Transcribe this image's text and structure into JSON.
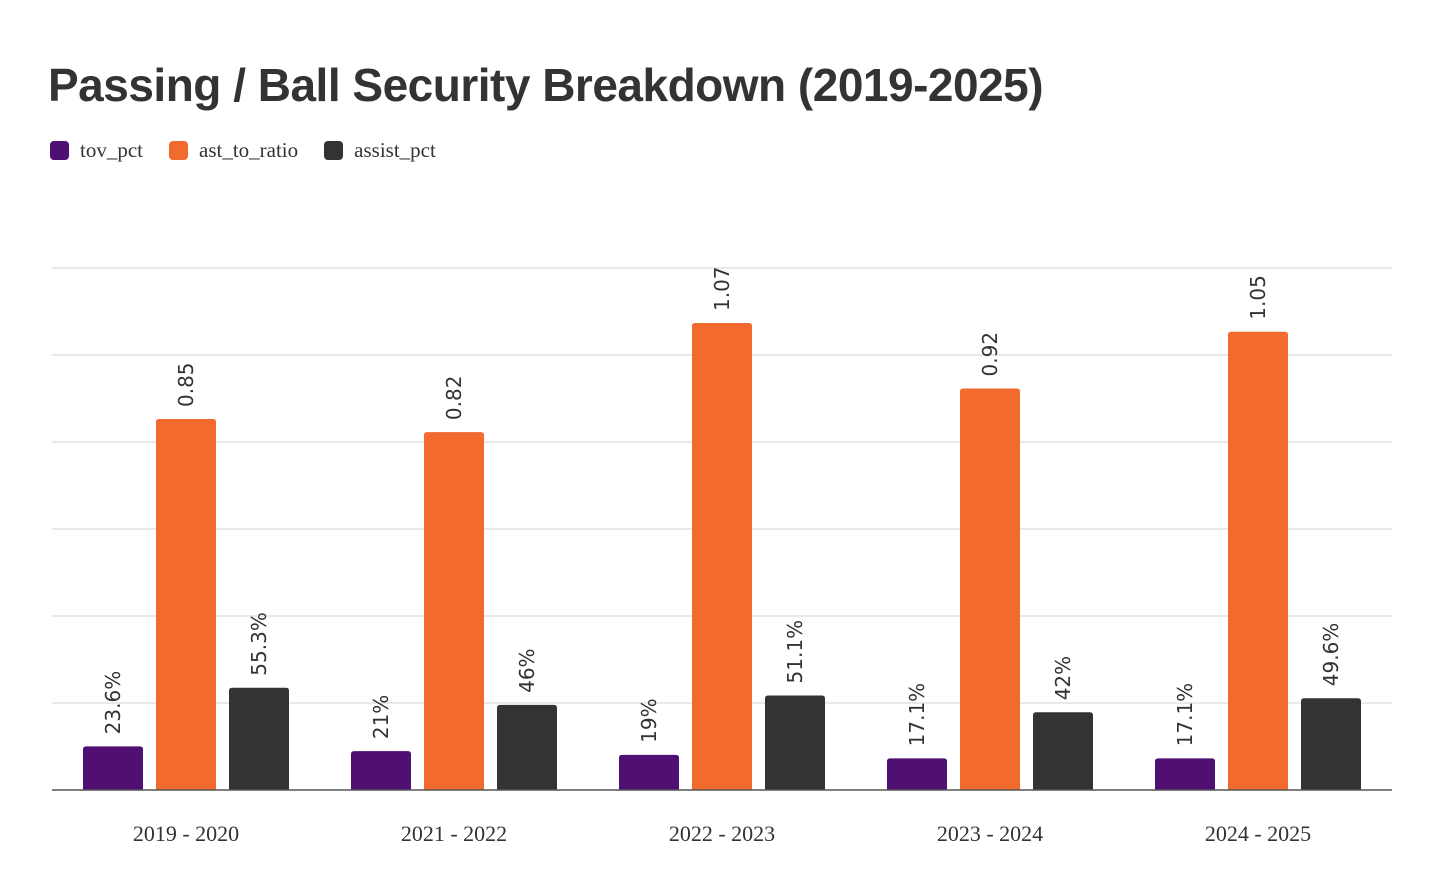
{
  "chart_data": {
    "type": "bar",
    "title": "Passing / Ball Security Breakdown (2019-2025)",
    "categories": [
      "2019 - 2020",
      "2021 - 2022",
      "2022 - 2023",
      "2023 - 2024",
      "2024 - 2025"
    ],
    "series": [
      {
        "name": "tov_pct",
        "color": "#4f0f73",
        "values": [
          23.6,
          21,
          19,
          17.1,
          17.1
        ],
        "labels": [
          "23.6%",
          "21%",
          "19%",
          "17.1%",
          "17.1%"
        ]
      },
      {
        "name": "ast_to_ratio",
        "color": "#f26a2e",
        "values": [
          0.85,
          0.82,
          1.07,
          0.92,
          1.05
        ],
        "labels": [
          "0.85",
          "0.82",
          "1.07",
          "0.92",
          "1.05"
        ]
      },
      {
        "name": "assist_pct",
        "color": "#333333",
        "values": [
          55.3,
          46,
          51.1,
          42,
          49.6
        ],
        "labels": [
          "55.3%",
          "46%",
          "51.1%",
          "42%",
          "49.6%"
        ]
      }
    ],
    "xlabel": "",
    "ylabel": "",
    "grid": true,
    "legend_position": "top-left"
  }
}
